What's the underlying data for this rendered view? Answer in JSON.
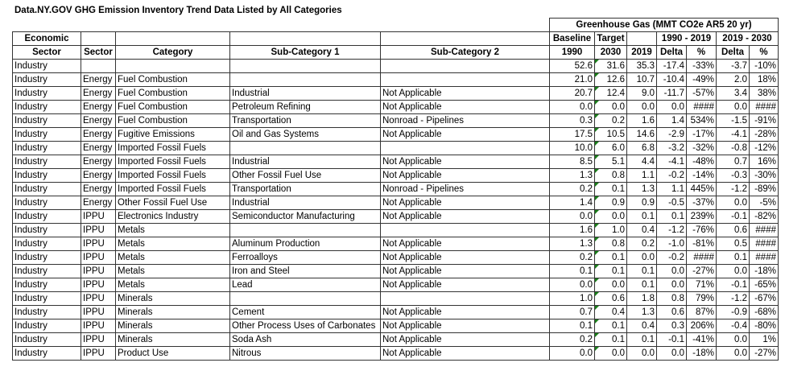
{
  "title": "Data.NY.GOV GHG Emission Inventory Trend Data Listed by All Categories",
  "headers": {
    "group": "Greenhouse Gas (MMT CO2e AR5 20 yr)",
    "economic_sector": [
      "Economic",
      "Sector"
    ],
    "sector": "Sector",
    "category": "Category",
    "sub1": "Sub-Category 1",
    "sub2": "Sub-Category 2",
    "baseline": [
      "Baseline",
      "1990"
    ],
    "target": [
      "Target",
      "2030"
    ],
    "y2019": "2019",
    "range1": "1990 - 2019",
    "range2": "2019 - 2030",
    "delta": "Delta",
    "pct": "%"
  },
  "rows": [
    [
      "Industry",
      "",
      "",
      "",
      "",
      "52.6",
      "31.6",
      "35.3",
      "-17.4",
      "-33%",
      "-3.7",
      "-10%"
    ],
    [
      "Industry",
      "Energy",
      "Fuel Combustion",
      "",
      "",
      "21.0",
      "12.6",
      "10.7",
      "-10.4",
      "-49%",
      "2.0",
      "18%"
    ],
    [
      "Industry",
      "Energy",
      "Fuel Combustion",
      "Industrial",
      "Not Applicable",
      "20.7",
      "12.4",
      "9.0",
      "-11.7",
      "-57%",
      "3.4",
      "38%"
    ],
    [
      "Industry",
      "Energy",
      "Fuel Combustion",
      "Petroleum Refining",
      "Not Applicable",
      "0.0",
      "0.0",
      "0.0",
      "0.0",
      "####",
      "0.0",
      "####"
    ],
    [
      "Industry",
      "Energy",
      "Fuel Combustion",
      "Transportation",
      "Nonroad - Pipelines",
      "0.3",
      "0.2",
      "1.6",
      "1.4",
      "534%",
      "-1.5",
      "-91%"
    ],
    [
      "Industry",
      "Energy",
      "Fugitive Emissions",
      "Oil and Gas Systems",
      "Not Applicable",
      "17.5",
      "10.5",
      "14.6",
      "-2.9",
      "-17%",
      "-4.1",
      "-28%"
    ],
    [
      "Industry",
      "Energy",
      "Imported Fossil Fuels",
      "",
      "",
      "10.0",
      "6.0",
      "6.8",
      "-3.2",
      "-32%",
      "-0.8",
      "-12%"
    ],
    [
      "Industry",
      "Energy",
      "Imported Fossil Fuels",
      "Industrial",
      "Not Applicable",
      "8.5",
      "5.1",
      "4.4",
      "-4.1",
      "-48%",
      "0.7",
      "16%"
    ],
    [
      "Industry",
      "Energy",
      "Imported Fossil Fuels",
      "Other Fossil Fuel Use",
      "Not Applicable",
      "1.3",
      "0.8",
      "1.1",
      "-0.2",
      "-14%",
      "-0.3",
      "-30%"
    ],
    [
      "Industry",
      "Energy",
      "Imported Fossil Fuels",
      "Transportation",
      "Nonroad - Pipelines",
      "0.2",
      "0.1",
      "1.3",
      "1.1",
      "445%",
      "-1.2",
      "-89%"
    ],
    [
      "Industry",
      "Energy",
      "Other Fossil Fuel Use",
      "Industrial",
      "Not Applicable",
      "1.4",
      "0.9",
      "0.9",
      "-0.5",
      "-37%",
      "0.0",
      "-5%"
    ],
    [
      "Industry",
      "IPPU",
      "Electronics Industry",
      "Semiconductor Manufacturing",
      "Not Applicable",
      "0.0",
      "0.0",
      "0.1",
      "0.1",
      "239%",
      "-0.1",
      "-82%"
    ],
    [
      "Industry",
      "IPPU",
      "Metals",
      "",
      "",
      "1.6",
      "1.0",
      "0.4",
      "-1.2",
      "-76%",
      "0.6",
      "####"
    ],
    [
      "Industry",
      "IPPU",
      "Metals",
      "Aluminum Production",
      "Not Applicable",
      "1.3",
      "0.8",
      "0.2",
      "-1.0",
      "-81%",
      "0.5",
      "####"
    ],
    [
      "Industry",
      "IPPU",
      "Metals",
      "Ferroalloys",
      "Not Applicable",
      "0.2",
      "0.1",
      "0.0",
      "-0.2",
      "####",
      "0.1",
      "####"
    ],
    [
      "Industry",
      "IPPU",
      "Metals",
      "Iron and Steel",
      "Not Applicable",
      "0.1",
      "0.1",
      "0.1",
      "0.0",
      "-27%",
      "0.0",
      "-18%"
    ],
    [
      "Industry",
      "IPPU",
      "Metals",
      "Lead",
      "Not Applicable",
      "0.0",
      "0.0",
      "0.1",
      "0.0",
      "71%",
      "-0.1",
      "-65%"
    ],
    [
      "Industry",
      "IPPU",
      "Minerals",
      "",
      "",
      "1.0",
      "0.6",
      "1.8",
      "0.8",
      "79%",
      "-1.2",
      "-67%"
    ],
    [
      "Industry",
      "IPPU",
      "Minerals",
      "Cement",
      "Not Applicable",
      "0.7",
      "0.4",
      "1.3",
      "0.6",
      "87%",
      "-0.9",
      "-68%"
    ],
    [
      "Industry",
      "IPPU",
      "Minerals",
      "Other Process Uses of Carbonates",
      "Not Applicable",
      "0.1",
      "0.1",
      "0.4",
      "0.3",
      "206%",
      "-0.4",
      "-80%"
    ],
    [
      "Industry",
      "IPPU",
      "Minerals",
      "Soda Ash",
      "Not Applicable",
      "0.2",
      "0.1",
      "0.1",
      "-0.1",
      "-41%",
      "0.0",
      "1%"
    ],
    [
      "Industry",
      "IPPU",
      "Product Use",
      "Nitrous",
      "Not Applicable",
      "0.0",
      "0.0",
      "0.0",
      "0.0",
      "-18%",
      "0.0",
      "-27%"
    ]
  ],
  "flag_color": "#1a7f1a"
}
